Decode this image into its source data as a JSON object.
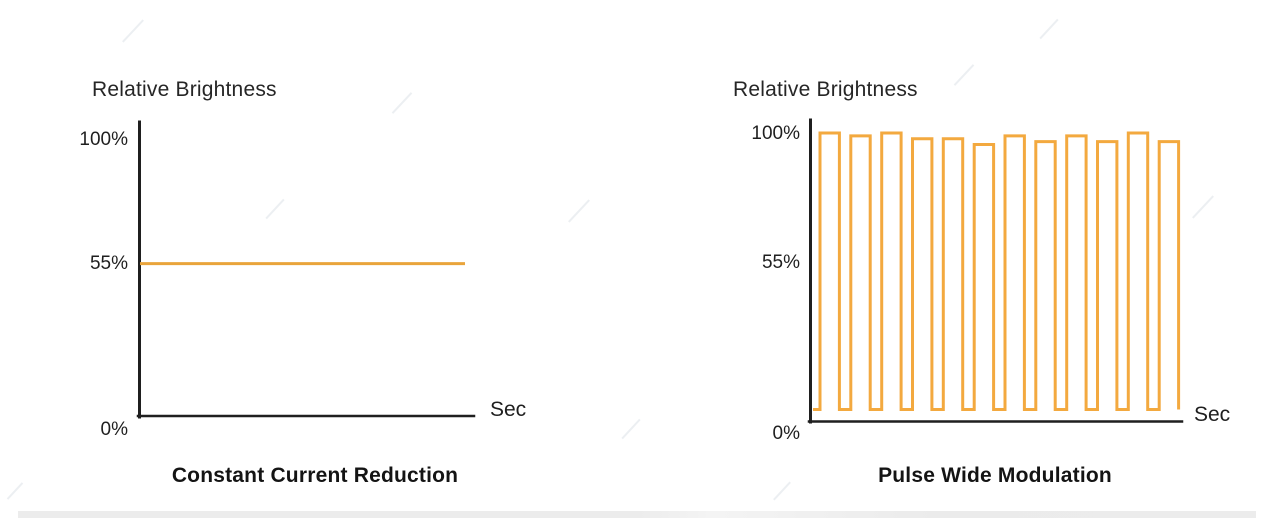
{
  "decor": {
    "axis_color": "#1f1f1f",
    "text_color": "#1e1e1e",
    "watermark_color": "#eceff2",
    "bottom_strip_color": "#ececec"
  },
  "chart_data": [
    {
      "type": "line",
      "title": "Constant Current Reduction",
      "ylabel": "Relative Brightness",
      "xlabel": "Sec",
      "ytick_labels": [
        "100%",
        "55%",
        "0%"
      ],
      "ytick_values": [
        100,
        55,
        0
      ],
      "ylim": [
        0,
        100
      ],
      "grid": false,
      "legend": false,
      "series": [
        {
          "shape": "constant",
          "value": 55,
          "color": "#E9A43B",
          "stroke_width": 3
        }
      ]
    },
    {
      "type": "line",
      "title": "Pulse Wide Modulation",
      "ylabel": "Relative Brightness",
      "xlabel": "Sec",
      "ytick_labels": [
        "100%",
        "55%",
        "0%"
      ],
      "ytick_values": [
        100,
        55,
        0
      ],
      "ylim": [
        0,
        100
      ],
      "grid": false,
      "legend": false,
      "series": [
        {
          "shape": "square_wave",
          "high": 100,
          "low": 4,
          "pulse_count": 12,
          "duty_cycle": 0.63,
          "high_values": [
            100,
            99,
            100,
            98,
            98,
            96,
            99,
            97,
            99,
            97,
            100,
            97
          ],
          "color": "#F3A93F",
          "stroke_width": 3
        }
      ]
    }
  ]
}
